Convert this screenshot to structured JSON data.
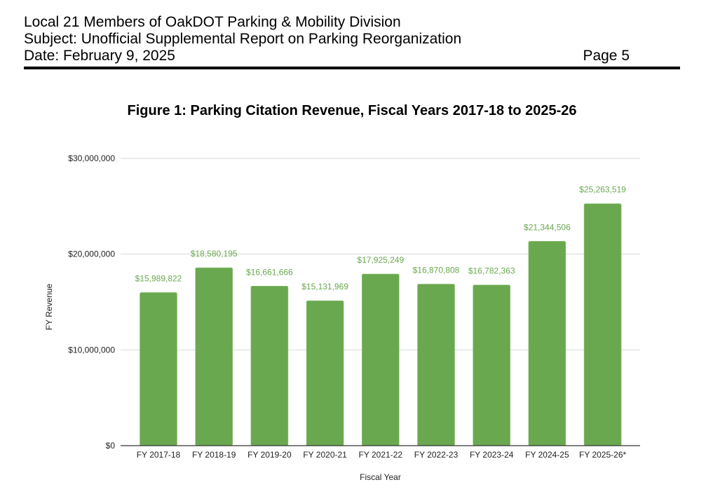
{
  "header": {
    "line1": "Local 21 Members of OakDOT Parking & Mobility Division",
    "line2": "Subject: Unofficial Supplemental Report on Parking Reorganization",
    "date": "Date:  February 9, 2025",
    "page": "Page 5"
  },
  "figure_title": "Figure 1: Parking Citation Revenue, Fiscal Years 2017-18 to 2025-26",
  "colors": {
    "bar": "#6aa84f",
    "data_label": "#6aa84f",
    "gridline": "#d9d9d9",
    "axis": "#333333"
  },
  "chart_data": {
    "type": "bar",
    "title": "Figure 1: Parking Citation Revenue, Fiscal Years 2017-18 to 2025-26",
    "xlabel": "Fiscal Year",
    "ylabel": "FY Revenue",
    "ylim": [
      0,
      30000000
    ],
    "grid": true,
    "legend": "none",
    "y_ticks": [
      0,
      10000000,
      20000000,
      30000000
    ],
    "y_tick_labels": [
      "$0",
      "$10,000,000",
      "$20,000,000",
      "$30,000,000"
    ],
    "categories": [
      "FY 2017-18",
      "FY 2018-19",
      "FY 2019-20",
      "FY 2020-21",
      "FY 2021-22",
      "FY 2022-23",
      "FY 2023-24",
      "FY 2024-25",
      "FY 2025-26*"
    ],
    "values": [
      15989822,
      18580195,
      16661666,
      15131969,
      17925249,
      16870808,
      16782363,
      21344506,
      25263519
    ],
    "data_labels": [
      "$15,989,822",
      "$18,580,195",
      "$16,661,666",
      "$15,131,969",
      "$17,925,249",
      "$16,870,808",
      "$16,782,363",
      "$21,344,506",
      "$25,263,519"
    ]
  }
}
